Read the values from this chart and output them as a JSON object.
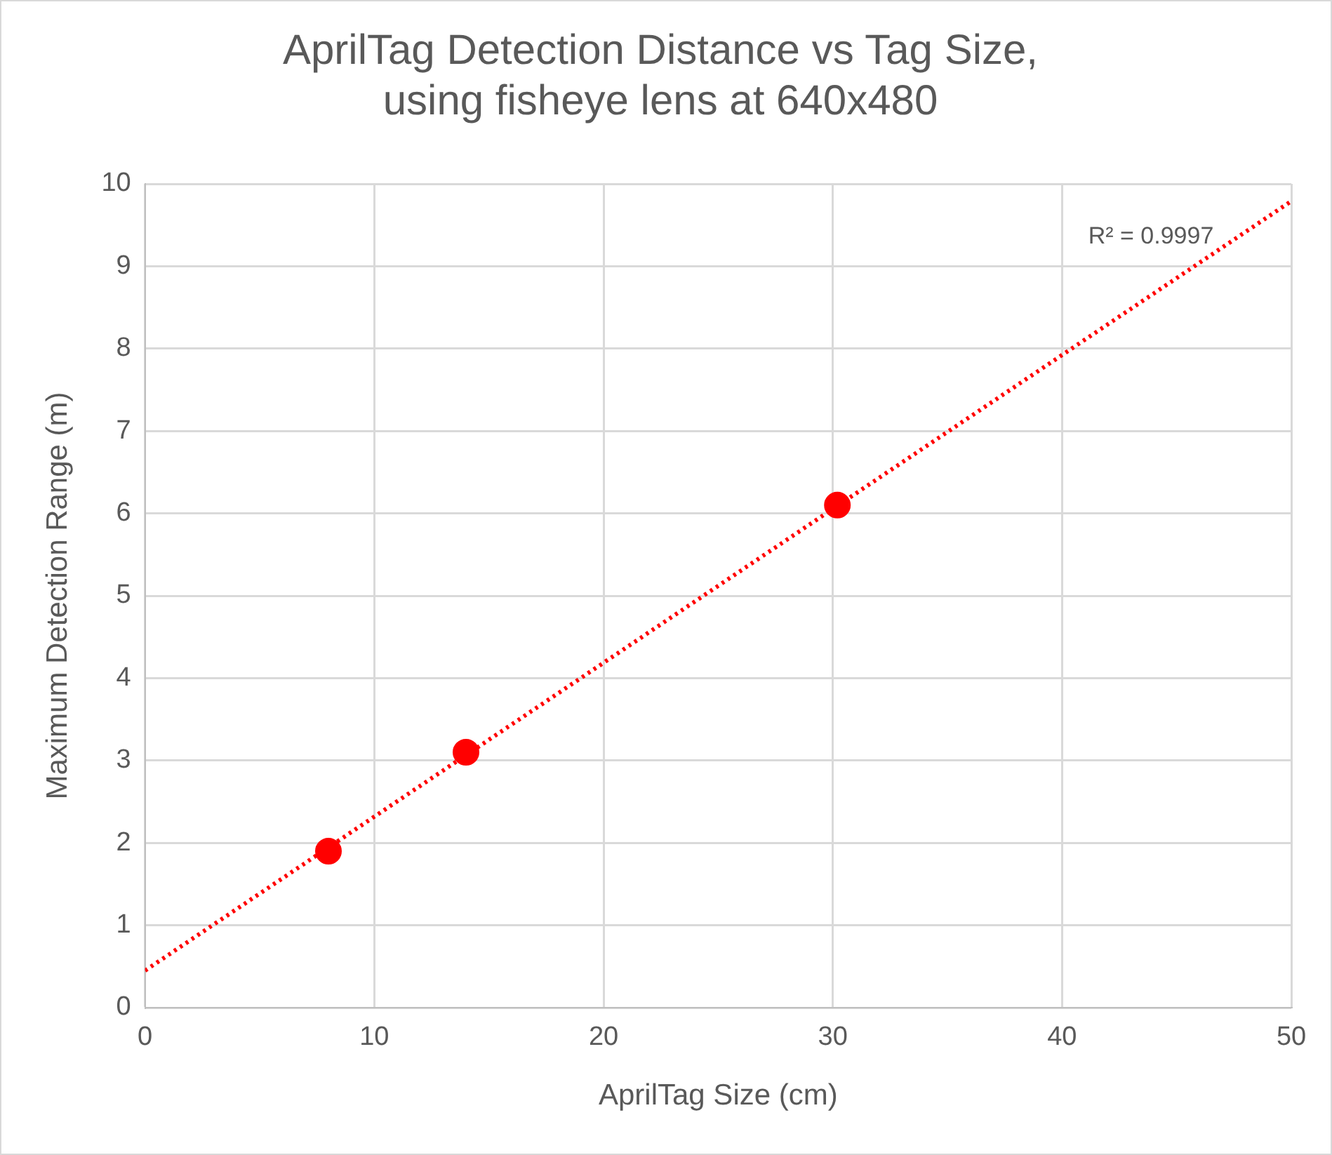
{
  "chart_data": {
    "type": "scatter",
    "title": "AprilTag Detection Distance vs Tag Size,\nusing fisheye lens at 640x480",
    "xlabel": "AprilTag Size (cm)",
    "ylabel": "Maximum Detection Range (m)",
    "series": [
      {
        "type": "scatter",
        "color": "#ff0000",
        "x": [
          8,
          14,
          30.2
        ],
        "values": [
          1.9,
          3.1,
          6.1
        ],
        "marker": "circle"
      },
      {
        "type": "line",
        "color": "#ff0000",
        "x": [
          0,
          50
        ],
        "values": [
          0.45,
          9.79
        ],
        "marker": "none",
        "line_style": "dotted"
      }
    ],
    "annotations": [
      "R² = 0.9997"
    ],
    "xlim": [
      0,
      50
    ],
    "xticks": [
      0,
      10,
      20,
      30,
      40,
      50
    ],
    "ylim": [
      0,
      10
    ],
    "yticks": [
      0,
      1,
      2,
      3,
      4,
      5,
      6,
      7,
      8,
      9,
      10
    ],
    "grid": true,
    "legend": false
  }
}
